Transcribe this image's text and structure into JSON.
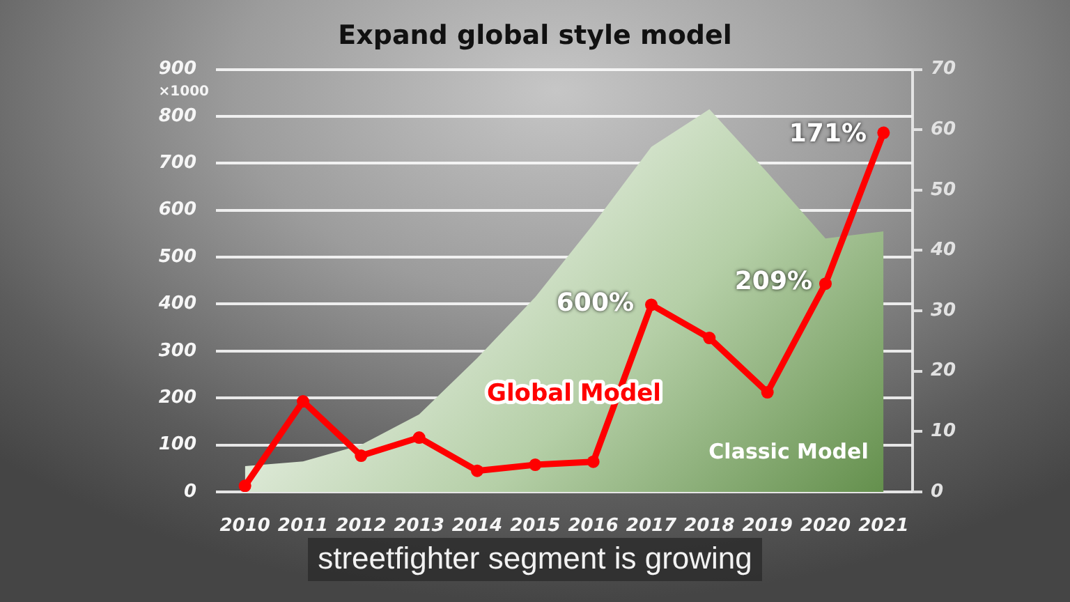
{
  "chart_data": {
    "type": "line",
    "title": "Expand global style model",
    "ylabel": "×1000",
    "categories": [
      "2010",
      "2011",
      "2012",
      "2013",
      "2014",
      "2015",
      "2016",
      "2017",
      "2018",
      "2019",
      "2020",
      "2021"
    ],
    "series": [
      {
        "name": "Classic Model",
        "type": "area",
        "color": "#6b9e4f",
        "values": [
          55,
          65,
          100,
          165,
          285,
          415,
          570,
          735,
          815,
          680,
          540,
          555
        ]
      },
      {
        "name": "Global Model",
        "axis": "y2",
        "marker": "circle",
        "color": "#ff0000",
        "values": [
          1,
          15,
          6,
          9,
          3.5,
          4.5,
          5,
          31,
          25.5,
          16.5,
          34.5,
          59.5
        ]
      }
    ],
    "ylim": [
      0,
      900
    ],
    "yticks": [
      0,
      100,
      200,
      300,
      400,
      500,
      600,
      700,
      800,
      900
    ],
    "y2lim": [
      0,
      70
    ],
    "y2ticks": [
      0,
      10,
      20,
      30,
      40,
      50,
      60,
      70
    ],
    "grid": "y",
    "annotations": [
      "600%",
      "209%",
      "171%",
      "streetfighter segment is growing"
    ]
  }
}
